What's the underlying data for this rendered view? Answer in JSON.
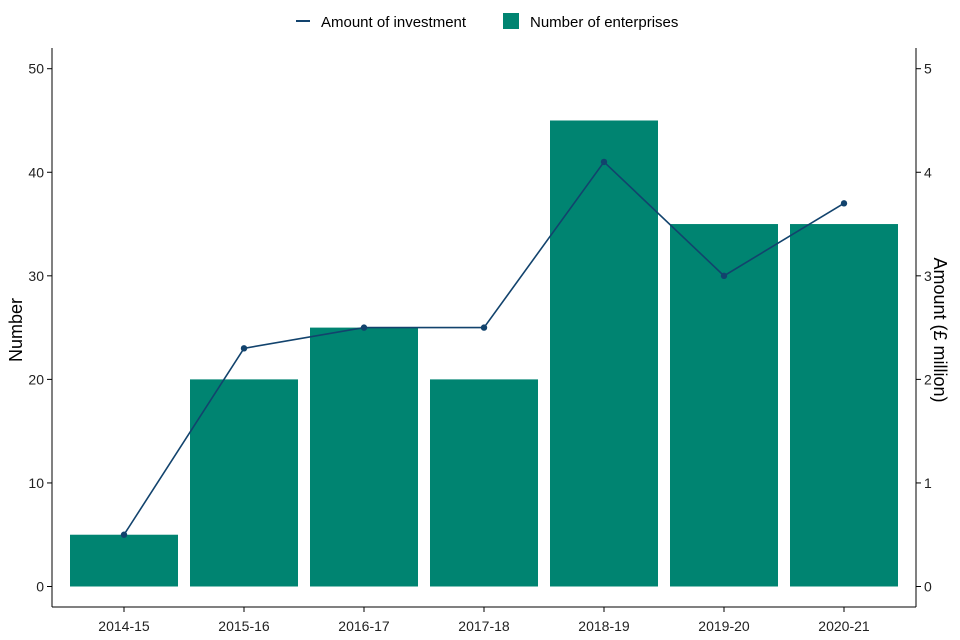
{
  "chart_data": {
    "type": "bar+line",
    "categories": [
      "2014-15",
      "2015-16",
      "2016-17",
      "2017-18",
      "2018-19",
      "2019-20",
      "2020-21"
    ],
    "series": [
      {
        "name": "Number of enterprises",
        "type": "bar",
        "axis": "left",
        "color": "#008471",
        "values": [
          5,
          20,
          25,
          20,
          45,
          35,
          35
        ]
      },
      {
        "name": "Amount of investment",
        "type": "line",
        "axis": "right",
        "color": "#12436D",
        "values": [
          0.5,
          2.3,
          2.5,
          2.5,
          4.1,
          3.0,
          3.7
        ]
      }
    ],
    "ylabel": "Number",
    "y2label": "Amount (£ million)",
    "ylim": [
      0,
      52
    ],
    "y2lim": [
      0,
      5.2
    ],
    "yticks": [
      0,
      10,
      20,
      30,
      40,
      50
    ],
    "y2ticks": [
      0,
      1,
      2,
      3,
      4,
      5
    ],
    "legend_position": "top",
    "grid": false
  }
}
